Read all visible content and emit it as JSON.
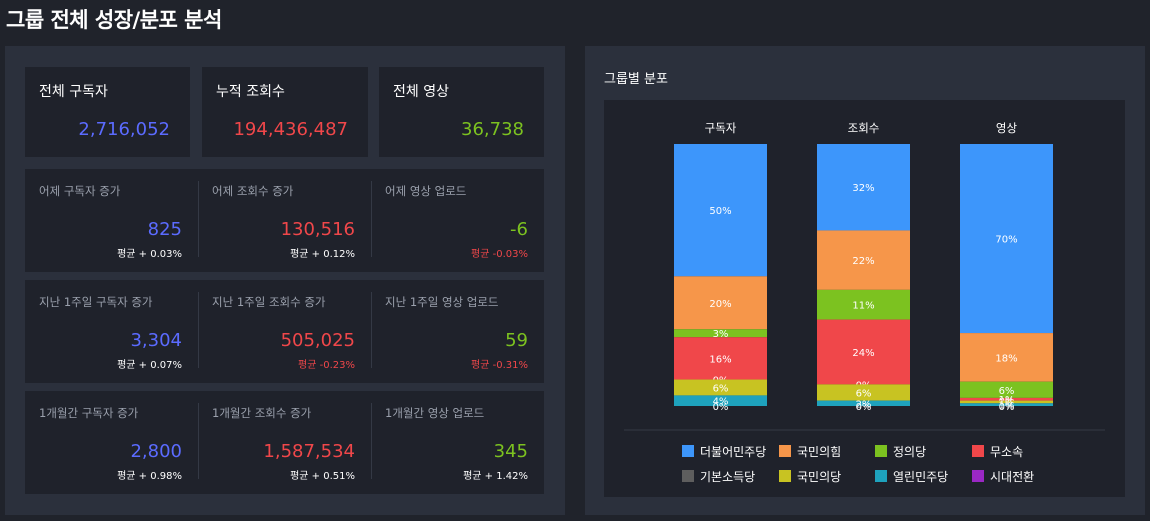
{
  "page": {
    "title": "그룹 전체 성장/분포 분석"
  },
  "totals": [
    {
      "label": "전체 구독자",
      "value": "2,716,052",
      "color": "#5b6bff"
    },
    {
      "label": "누적 조회수",
      "value": "194,436,487",
      "color": "#f0474a"
    },
    {
      "label": "전체 영상",
      "value": "36,738",
      "color": "#7cc220"
    }
  ],
  "rows": [
    [
      {
        "label": "어제 구독자 증가",
        "value": "825",
        "color": "blue",
        "avg": "평균 + 0.03%",
        "avg_neg": false
      },
      {
        "label": "어제 조회수 증가",
        "value": "130,516",
        "color": "red",
        "avg": "평균 + 0.12%",
        "avg_neg": false
      },
      {
        "label": "어제 영상 업로드",
        "value": "-6",
        "color": "green",
        "avg": "평균 -0.03%",
        "avg_neg": true
      }
    ],
    [
      {
        "label": "지난 1주일 구독자 증가",
        "value": "3,304",
        "color": "blue",
        "avg": "평균 + 0.07%",
        "avg_neg": false
      },
      {
        "label": "지난 1주일 조회수 증가",
        "value": "505,025",
        "color": "red",
        "avg": "평균 -0.23%",
        "avg_neg": true
      },
      {
        "label": "지난 1주일 영상 업로드",
        "value": "59",
        "color": "green",
        "avg": "평균 -0.31%",
        "avg_neg": true
      }
    ],
    [
      {
        "label": "1개월간 구독자 증가",
        "value": "2,800",
        "color": "blue",
        "avg": "평균 + 0.98%",
        "avg_neg": false
      },
      {
        "label": "1개월간 조회수 증가",
        "value": "1,587,534",
        "color": "red",
        "avg": "평균 + 0.51%",
        "avg_neg": false
      },
      {
        "label": "1개월간 영상 업로드",
        "value": "345",
        "color": "green",
        "avg": "평균 + 1.42%",
        "avg_neg": false
      }
    ]
  ],
  "distribution": {
    "title": "그룹별 분포"
  },
  "chart_data": {
    "type": "bar",
    "stacked": true,
    "normalized": true,
    "categories": [
      "구독자",
      "조회수",
      "영상"
    ],
    "series": [
      {
        "name": "더불어민주당",
        "color": "#3d96fb",
        "values": [
          50,
          32,
          70
        ]
      },
      {
        "name": "국민의힘",
        "color": "#f6964a",
        "values": [
          20,
          22,
          18
        ]
      },
      {
        "name": "정의당",
        "color": "#7cc220",
        "values": [
          3,
          11,
          6
        ]
      },
      {
        "name": "무소속",
        "color": "#f0474a",
        "values": [
          16,
          24,
          1
        ]
      },
      {
        "name": "기본소득당",
        "color": "#5e5e5e",
        "values": [
          0,
          0,
          0
        ]
      },
      {
        "name": "국민의당",
        "color": "#c8c322",
        "values": [
          6,
          6,
          1
        ]
      },
      {
        "name": "열린민주당",
        "color": "#1ea2bd",
        "values": [
          4,
          2,
          1
        ]
      },
      {
        "name": "시대전환",
        "color": "#9a28c4",
        "values": [
          0,
          0,
          0
        ]
      }
    ],
    "segment_labels": [
      [
        "50%",
        "20%",
        "3%",
        "16%",
        "0%",
        "6%",
        "4%",
        "0%"
      ],
      [
        "32%",
        "22%",
        "11%",
        "24%",
        "0%",
        "6%",
        "2%",
        "0%"
      ],
      [
        "70%",
        "18%",
        "6%",
        "1%",
        "0%",
        "1%",
        "1%",
        "0%"
      ]
    ],
    "ylim": [
      0,
      100
    ],
    "legend_position": "bottom"
  }
}
